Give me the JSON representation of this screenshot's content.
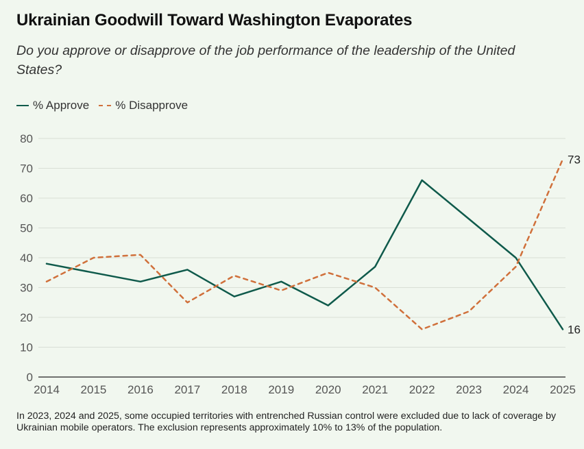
{
  "title": "Ukrainian Goodwill Toward Washington Evaporates",
  "subtitle": "Do you approve or disapprove of the job performance of the leadership of the United States?",
  "note": "In 2023, 2024 and 2025, some occupied territories with entrenched Russian control were excluded due to lack of coverage by Ukrainian mobile operators. The exclusion represents approximately 10% to 13% of the population.",
  "colors": {
    "approve": "#0f5a4b",
    "disapprove": "#d0703b",
    "grid": "#d9dfd6",
    "axis": "#444444",
    "tick_text": "#555555"
  },
  "chart_data": {
    "type": "line",
    "x": [
      "2014",
      "2015",
      "2016",
      "2017",
      "2018",
      "2019",
      "2020",
      "2021",
      "2022",
      "2023",
      "2024",
      "2025"
    ],
    "ylim": [
      0,
      80
    ],
    "yticks": [
      0,
      10,
      20,
      30,
      40,
      50,
      60,
      70,
      80
    ],
    "grid": true,
    "legend": "top-left",
    "series": [
      {
        "name": "% Approve",
        "style": "solid",
        "values": [
          38,
          35,
          32,
          36,
          27,
          32,
          24,
          37,
          66,
          53,
          40,
          16
        ]
      },
      {
        "name": "% Disapprove",
        "style": "dashed",
        "values": [
          32,
          40,
          41,
          25,
          34,
          29,
          35,
          30,
          16,
          22,
          37,
          73
        ]
      }
    ],
    "end_labels": [
      "16",
      "73"
    ]
  }
}
